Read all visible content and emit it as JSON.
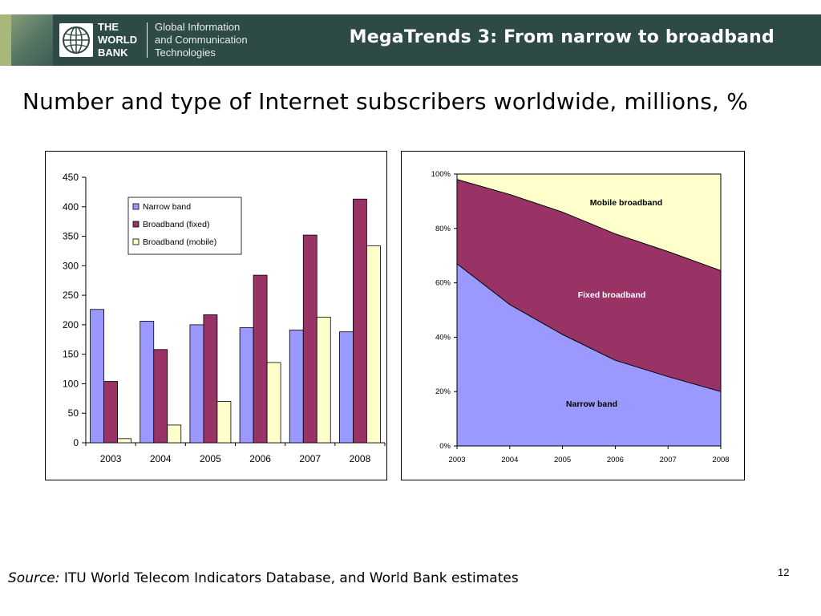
{
  "header": {
    "org_name_lines": [
      "THE",
      "WORLD",
      "BANK"
    ],
    "unit_lines": [
      "Global Information",
      "and Communication",
      "Technologies"
    ],
    "title": "MegaTrends 3: From narrow to broadband",
    "logo_icon": "globe-icon",
    "colors": {
      "band": "#2e4a46",
      "stripe": "#a9b77a"
    }
  },
  "subtitle": "Number and type of Internet subscribers worldwide, millions, %",
  "chart_data": [
    {
      "type": "bar",
      "categories": [
        "2003",
        "2004",
        "2005",
        "2006",
        "2007",
        "2008"
      ],
      "series": [
        {
          "name": "Narrow band",
          "color": "#9999ff",
          "values": [
            226,
            206,
            200,
            195,
            191,
            188
          ]
        },
        {
          "name": "Broadband (fixed)",
          "color": "#993366",
          "values": [
            104,
            158,
            217,
            284,
            352,
            413
          ]
        },
        {
          "name": "Broadband (mobile)",
          "color": "#ffffcc",
          "values": [
            7,
            30,
            70,
            136,
            213,
            334
          ]
        }
      ],
      "ylim": [
        0,
        450
      ],
      "yticks": [
        "0",
        "50",
        "100",
        "150",
        "200",
        "250",
        "300",
        "350",
        "400",
        "450"
      ],
      "legend": "top-left inside plot",
      "grid": false
    },
    {
      "type": "area",
      "stacked_percent": true,
      "x": [
        "2003",
        "2004",
        "2005",
        "2006",
        "2007",
        "2008"
      ],
      "series": [
        {
          "name": "Narrow band",
          "color": "#9999ff",
          "values": [
            67,
            52,
            41,
            31.5,
            25.5,
            20
          ]
        },
        {
          "name": "Fixed broadband",
          "color": "#993366",
          "values": [
            31,
            40.5,
            45,
            46.5,
            46,
            44.5
          ]
        },
        {
          "name": "Mobile broadband",
          "color": "#ffffcc",
          "values": [
            2,
            7.5,
            14,
            22,
            28.5,
            35.5
          ]
        }
      ],
      "ylim": [
        0,
        100
      ],
      "yticks": [
        "0%",
        "20%",
        "40%",
        "60%",
        "80%",
        "100%"
      ],
      "labels": [
        "Narrow band",
        "Fixed broadband",
        "Mobile broadband"
      ],
      "grid": false
    }
  ],
  "footer": {
    "source_label": "Source:",
    "source_text": " ITU World Telecom Indicators Database, and World Bank estimates",
    "page_number": "12"
  }
}
